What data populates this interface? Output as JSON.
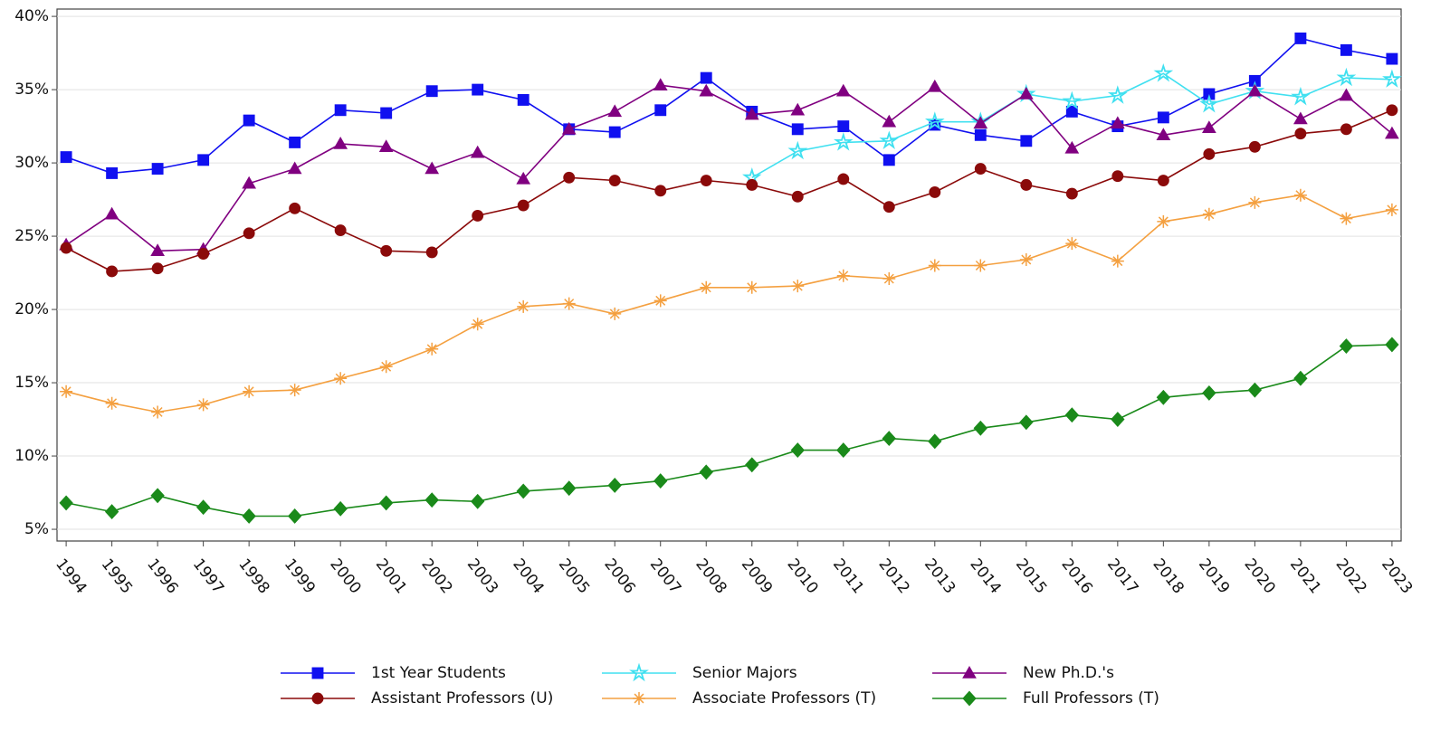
{
  "chart_data": {
    "type": "line",
    "x": [
      1994,
      1995,
      1996,
      1997,
      1998,
      1999,
      2000,
      2001,
      2002,
      2003,
      2004,
      2005,
      2006,
      2007,
      2008,
      2009,
      2010,
      2011,
      2012,
      2013,
      2014,
      2015,
      2016,
      2017,
      2018,
      2019,
      2020,
      2021,
      2022,
      2023
    ],
    "xlim": [
      1993.8,
      2023.2
    ],
    "xticks": [
      1994,
      1995,
      1996,
      1997,
      1998,
      1999,
      2000,
      2001,
      2002,
      2003,
      2004,
      2005,
      2006,
      2007,
      2008,
      2009,
      2010,
      2011,
      2012,
      2013,
      2014,
      2015,
      2016,
      2017,
      2018,
      2019,
      2020,
      2021,
      2022,
      2023
    ],
    "ylim": [
      4.2,
      40.5
    ],
    "yticks": [
      {
        "value": 5,
        "label": "5%"
      },
      {
        "value": 10,
        "label": "10%"
      },
      {
        "value": 15,
        "label": "15%"
      },
      {
        "value": 20,
        "label": "20%"
      },
      {
        "value": 25,
        "label": "25%"
      },
      {
        "value": 30,
        "label": "30%"
      },
      {
        "value": 35,
        "label": "35%"
      },
      {
        "value": 40,
        "label": "40%"
      }
    ],
    "grid": true,
    "series": [
      {
        "name": "1st Year Students",
        "color": "#1010f0",
        "marker": "square",
        "values": [
          30.4,
          29.3,
          29.6,
          30.2,
          32.9,
          31.4,
          33.6,
          33.4,
          34.9,
          35.0,
          34.3,
          32.3,
          32.1,
          33.6,
          35.8,
          33.5,
          32.3,
          32.5,
          30.2,
          32.6,
          31.9,
          31.5,
          33.5,
          32.5,
          33.1,
          34.7,
          35.6,
          38.5,
          37.7,
          37.1
        ]
      },
      {
        "name": "Senior Majors",
        "color": "#40e0f0",
        "marker": "star",
        "values": [
          null,
          null,
          null,
          null,
          null,
          null,
          null,
          null,
          null,
          null,
          null,
          null,
          null,
          null,
          null,
          29.0,
          30.8,
          31.4,
          31.5,
          32.8,
          32.8,
          34.7,
          34.2,
          34.6,
          36.1,
          34.0,
          34.9,
          34.5,
          35.8,
          35.7
        ]
      },
      {
        "name": "New Ph.D.'s",
        "color": "#800080",
        "marker": "triangle",
        "values": [
          24.4,
          26.5,
          24.0,
          24.1,
          28.6,
          29.6,
          31.3,
          31.1,
          29.6,
          30.7,
          28.9,
          32.3,
          33.5,
          35.3,
          34.9,
          33.3,
          33.6,
          34.9,
          32.8,
          35.2,
          32.7,
          34.7,
          31.0,
          32.7,
          31.9,
          32.4,
          34.9,
          33.0,
          34.6,
          32.0
        ]
      },
      {
        "name": "Assistant Professors (U)",
        "color": "#8b0a0a",
        "marker": "circle",
        "values": [
          24.2,
          22.6,
          22.8,
          23.8,
          25.2,
          26.9,
          25.4,
          24.0,
          23.9,
          26.4,
          27.1,
          29.0,
          28.8,
          28.1,
          28.8,
          28.5,
          27.7,
          28.9,
          27.0,
          28.0,
          29.6,
          28.5,
          27.9,
          29.1,
          28.8,
          30.6,
          31.1,
          32.0,
          32.3,
          33.6
        ]
      },
      {
        "name": "Associate Professors (T)",
        "color": "#f4a040",
        "marker": "asterisk",
        "values": [
          14.4,
          13.6,
          13.0,
          13.5,
          14.4,
          14.5,
          15.3,
          16.1,
          17.3,
          19.0,
          20.2,
          20.4,
          19.7,
          20.6,
          21.5,
          21.5,
          21.6,
          22.3,
          22.1,
          23.0,
          23.0,
          23.4,
          24.5,
          23.3,
          26.0,
          26.5,
          27.3,
          27.8,
          26.2,
          26.8
        ]
      },
      {
        "name": "Full Professors (T)",
        "color": "#1a8a1a",
        "marker": "diamond",
        "values": [
          6.8,
          6.2,
          7.3,
          6.5,
          5.9,
          5.9,
          6.4,
          6.8,
          7.0,
          6.9,
          7.6,
          7.8,
          8.0,
          8.3,
          8.9,
          9.4,
          10.4,
          10.4,
          11.2,
          11.0,
          11.9,
          12.3,
          12.8,
          12.5,
          14.0,
          14.3,
          14.5,
          15.3,
          17.5,
          17.6
        ]
      }
    ]
  }
}
